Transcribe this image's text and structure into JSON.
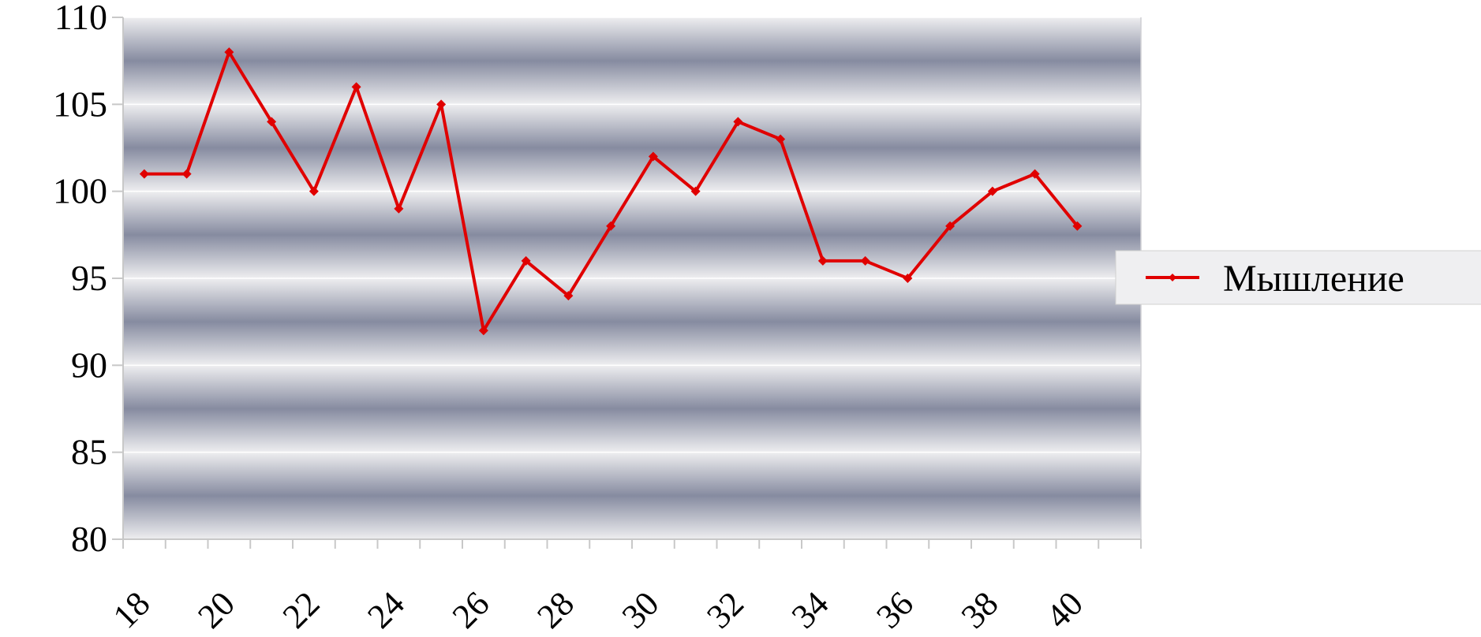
{
  "chart_data": {
    "type": "line",
    "title": "",
    "xlabel": "",
    "ylabel": "",
    "ylim": [
      80,
      110
    ],
    "yticks": [
      80,
      85,
      90,
      95,
      100,
      105,
      110
    ],
    "xticks": [
      18,
      20,
      22,
      24,
      26,
      28,
      30,
      32,
      34,
      36,
      38,
      40
    ],
    "grid": true,
    "legend_position": "right",
    "line_color": "#e00000",
    "x": [
      18,
      19,
      20,
      21,
      22,
      23,
      24,
      25,
      26,
      27,
      28,
      29,
      30,
      31,
      32,
      33,
      34,
      35,
      36,
      37,
      38,
      39,
      40,
      41
    ],
    "series": [
      {
        "name": "Мышление",
        "values": [
          101,
          101,
          108,
          104,
          100,
          106,
          99,
          105,
          92,
          96,
          94,
          98,
          102,
          100,
          104,
          103,
          96,
          96,
          95,
          98,
          100,
          101,
          98,
          null
        ]
      }
    ]
  }
}
